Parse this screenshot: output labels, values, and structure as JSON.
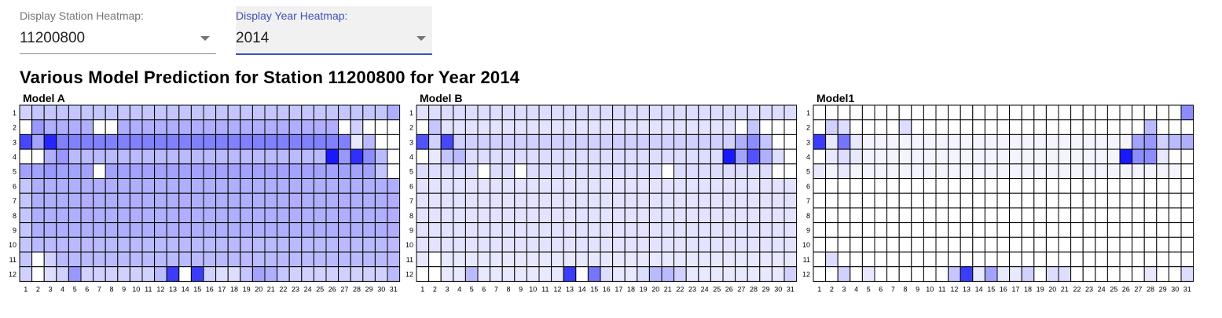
{
  "controls": {
    "station": {
      "label": "Display Station Heatmap:",
      "value": "11200800"
    },
    "year": {
      "label": "Display Year Heatmap:",
      "value": "2014"
    }
  },
  "title": "Various Model Prediction for Station 11200800 for Year 2014",
  "chart_data": [
    {
      "type": "heatmap",
      "title": "Model A",
      "x": [
        1,
        2,
        3,
        4,
        5,
        6,
        7,
        8,
        9,
        10,
        11,
        12,
        13,
        14,
        15,
        16,
        17,
        18,
        19,
        20,
        21,
        22,
        23,
        24,
        25,
        26,
        27,
        28,
        29,
        30,
        31
      ],
      "y": [
        1,
        2,
        3,
        4,
        5,
        6,
        7,
        8,
        9,
        10,
        11,
        12
      ],
      "base_values": [
        0.25,
        0.35,
        0.55,
        0.3,
        0.4,
        0.35,
        0.35,
        0.35,
        0.35,
        0.3,
        0.3,
        0.3
      ],
      "overrides": [
        [
          1,
          1,
          0.2
        ],
        [
          1,
          31,
          0.35
        ],
        [
          2,
          1,
          0
        ],
        [
          2,
          2,
          0.45
        ],
        [
          2,
          7,
          0
        ],
        [
          2,
          8,
          0
        ],
        [
          2,
          27,
          0
        ],
        [
          2,
          28,
          0.2
        ],
        [
          2,
          29,
          0
        ],
        [
          2,
          30,
          0
        ],
        [
          2,
          31,
          0
        ],
        [
          3,
          1,
          0.8
        ],
        [
          3,
          2,
          0.4
        ],
        [
          3,
          3,
          0.95
        ],
        [
          3,
          28,
          0.1
        ],
        [
          3,
          29,
          0.3
        ],
        [
          3,
          30,
          0
        ],
        [
          3,
          31,
          0
        ],
        [
          4,
          1,
          0
        ],
        [
          4,
          2,
          0
        ],
        [
          4,
          3,
          0.35
        ],
        [
          4,
          4,
          0.45
        ],
        [
          4,
          26,
          1.0
        ],
        [
          4,
          27,
          0.45
        ],
        [
          4,
          28,
          0.9
        ],
        [
          4,
          29,
          0.5
        ],
        [
          4,
          30,
          0.3
        ],
        [
          4,
          31,
          0
        ],
        [
          5,
          3,
          0.45
        ],
        [
          5,
          7,
          0
        ],
        [
          5,
          30,
          0.25
        ],
        [
          5,
          31,
          0
        ],
        [
          6,
          1,
          0.25
        ],
        [
          7,
          1,
          0.25
        ],
        [
          8,
          1,
          0.25
        ],
        [
          9,
          1,
          0.25
        ],
        [
          10,
          1,
          0.25
        ],
        [
          11,
          1,
          0.25
        ],
        [
          11,
          2,
          0
        ],
        [
          11,
          3,
          0.2
        ],
        [
          12,
          1,
          0.2
        ],
        [
          12,
          2,
          0
        ],
        [
          12,
          3,
          0.15
        ],
        [
          12,
          4,
          0.2
        ],
        [
          12,
          5,
          0.45
        ],
        [
          12,
          6,
          0.2
        ],
        [
          12,
          7,
          0.2
        ],
        [
          12,
          8,
          0.2
        ],
        [
          12,
          9,
          0.2
        ],
        [
          12,
          10,
          0.2
        ],
        [
          12,
          11,
          0.2
        ],
        [
          12,
          12,
          0.3
        ],
        [
          12,
          13,
          0.85
        ],
        [
          12,
          14,
          0
        ],
        [
          12,
          15,
          0.85
        ],
        [
          12,
          16,
          0.2
        ],
        [
          12,
          17,
          0.15
        ],
        [
          12,
          18,
          0.15
        ],
        [
          12,
          19,
          0.25
        ],
        [
          12,
          20,
          0.4
        ],
        [
          12,
          21,
          0.35
        ],
        [
          12,
          22,
          0.25
        ],
        [
          12,
          23,
          0.2
        ],
        [
          12,
          24,
          0.2
        ],
        [
          12,
          25,
          0.2
        ],
        [
          12,
          26,
          0.2
        ],
        [
          12,
          27,
          0.2
        ],
        [
          12,
          28,
          0.2
        ],
        [
          12,
          29,
          0.2
        ],
        [
          12,
          30,
          0.2
        ],
        [
          12,
          31,
          0.3
        ]
      ]
    },
    {
      "type": "heatmap",
      "title": "Model B",
      "x": [
        1,
        2,
        3,
        4,
        5,
        6,
        7,
        8,
        9,
        10,
        11,
        12,
        13,
        14,
        15,
        16,
        17,
        18,
        19,
        20,
        21,
        22,
        23,
        24,
        25,
        26,
        27,
        28,
        29,
        30,
        31
      ],
      "y": [
        1,
        2,
        3,
        4,
        5,
        6,
        7,
        8,
        9,
        10,
        11,
        12
      ],
      "base_values": [
        0.15,
        0.12,
        0.2,
        0.15,
        0.15,
        0.12,
        0.12,
        0.12,
        0.12,
        0.12,
        0.1,
        0.1
      ],
      "overrides": [
        [
          1,
          1,
          0.12
        ],
        [
          2,
          1,
          0
        ],
        [
          2,
          2,
          0.25
        ],
        [
          2,
          27,
          0
        ],
        [
          2,
          28,
          0.25
        ],
        [
          2,
          29,
          0
        ],
        [
          2,
          30,
          0
        ],
        [
          2,
          31,
          0
        ],
        [
          3,
          1,
          0.75
        ],
        [
          3,
          2,
          0.2
        ],
        [
          3,
          3,
          0.8
        ],
        [
          3,
          27,
          0.35
        ],
        [
          3,
          28,
          0.5
        ],
        [
          3,
          29,
          0.25
        ],
        [
          3,
          30,
          0
        ],
        [
          3,
          31,
          0
        ],
        [
          4,
          1,
          0
        ],
        [
          4,
          2,
          0.1
        ],
        [
          4,
          3,
          0.25
        ],
        [
          4,
          4,
          0.3
        ],
        [
          4,
          26,
          1.0
        ],
        [
          4,
          27,
          0.4
        ],
        [
          4,
          28,
          0.75
        ],
        [
          4,
          29,
          0.35
        ],
        [
          4,
          30,
          0.15
        ],
        [
          4,
          31,
          0
        ],
        [
          5,
          6,
          0
        ],
        [
          5,
          9,
          0
        ],
        [
          5,
          21,
          0
        ],
        [
          5,
          30,
          0
        ],
        [
          5,
          31,
          0
        ],
        [
          11,
          2,
          0
        ],
        [
          12,
          1,
          0
        ],
        [
          12,
          2,
          0
        ],
        [
          12,
          5,
          0.3
        ],
        [
          12,
          13,
          0.85
        ],
        [
          12,
          14,
          0
        ],
        [
          12,
          15,
          0.6
        ],
        [
          12,
          16,
          0.15
        ],
        [
          12,
          19,
          0.15
        ],
        [
          12,
          20,
          0.3
        ],
        [
          12,
          21,
          0.3
        ],
        [
          12,
          22,
          0.2
        ],
        [
          12,
          31,
          0.2
        ]
      ]
    },
    {
      "type": "heatmap",
      "title": "Model1",
      "x": [
        1,
        2,
        3,
        4,
        5,
        6,
        7,
        8,
        9,
        10,
        11,
        12,
        13,
        14,
        15,
        16,
        17,
        18,
        19,
        20,
        21,
        22,
        23,
        24,
        25,
        26,
        27,
        28,
        29,
        30,
        31
      ],
      "y": [
        1,
        2,
        3,
        4,
        5,
        6,
        7,
        8,
        9,
        10,
        11,
        12
      ],
      "base_values": [
        0,
        0,
        0.05,
        0.05,
        0.05,
        0,
        0,
        0,
        0,
        0,
        0,
        0
      ],
      "overrides": [
        [
          1,
          31,
          0.5
        ],
        [
          2,
          2,
          0.2
        ],
        [
          2,
          3,
          0.15
        ],
        [
          2,
          8,
          0.15
        ],
        [
          2,
          28,
          0.3
        ],
        [
          2,
          29,
          0
        ],
        [
          2,
          30,
          0
        ],
        [
          2,
          31,
          0
        ],
        [
          3,
          1,
          0.85
        ],
        [
          3,
          2,
          0.1
        ],
        [
          3,
          3,
          0.6
        ],
        [
          3,
          4,
          0.1
        ],
        [
          3,
          27,
          0.4
        ],
        [
          3,
          28,
          0.45
        ],
        [
          3,
          29,
          0.2
        ],
        [
          3,
          30,
          0.3
        ],
        [
          3,
          31,
          0.35
        ],
        [
          4,
          1,
          0
        ],
        [
          4,
          2,
          0.1
        ],
        [
          4,
          3,
          0.15
        ],
        [
          4,
          4,
          0.1
        ],
        [
          4,
          26,
          1.0
        ],
        [
          4,
          27,
          0.5
        ],
        [
          4,
          28,
          0.5
        ],
        [
          4,
          29,
          0.1
        ],
        [
          4,
          30,
          0
        ],
        [
          4,
          31,
          0
        ],
        [
          5,
          1,
          0.1
        ],
        [
          5,
          3,
          0.1
        ],
        [
          5,
          8,
          0.05
        ],
        [
          5,
          31,
          0
        ],
        [
          11,
          2,
          0.15
        ],
        [
          12,
          3,
          0.2
        ],
        [
          12,
          5,
          0.1
        ],
        [
          12,
          12,
          0.25
        ],
        [
          12,
          13,
          0.85
        ],
        [
          12,
          14,
          0.1
        ],
        [
          12,
          15,
          0.4
        ],
        [
          12,
          16,
          0.1
        ],
        [
          12,
          17,
          0.1
        ],
        [
          12,
          18,
          0.2
        ],
        [
          12,
          20,
          0.15
        ],
        [
          12,
          21,
          0.15
        ],
        [
          12,
          28,
          0.1
        ],
        [
          12,
          31,
          0.15
        ]
      ]
    }
  ]
}
